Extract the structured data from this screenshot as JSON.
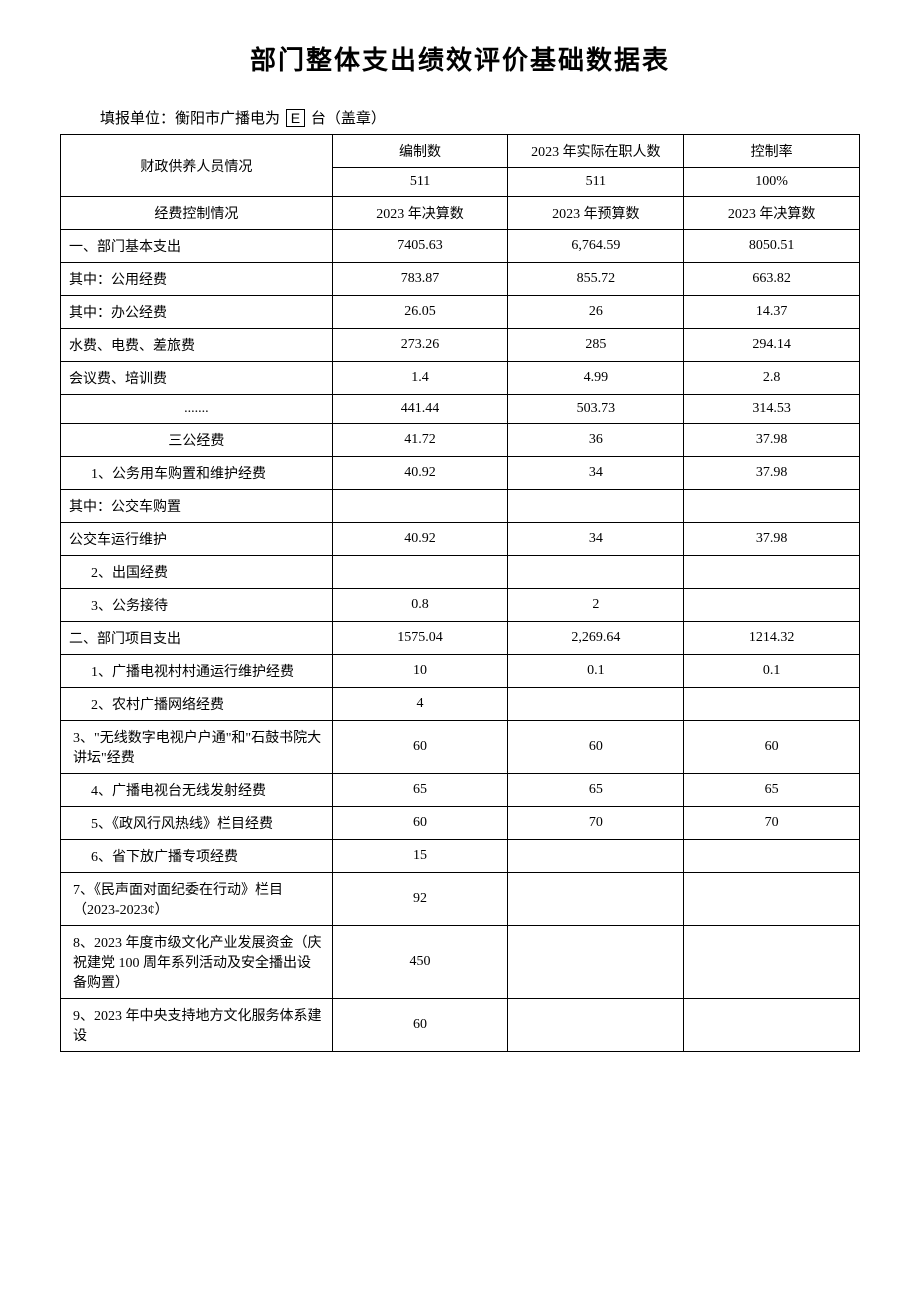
{
  "title": "部门整体支出绩效评价基础数据表",
  "subtitle_prefix": "填报单位：衡阳市广播电为",
  "subtitle_mid": "E",
  "subtitle_suffix": "台（盖章）",
  "header_row1": {
    "label": "财政供养人员情况",
    "col1": "编制数",
    "col2": "2023 年实际在职人数",
    "col3": "控制率"
  },
  "header_row2": {
    "col1": "511",
    "col2": "511",
    "col3": "100%"
  },
  "header_row3": {
    "label": "经费控制情况",
    "col1": "2023 年决算数",
    "col2": "2023 年预算数",
    "col3": "2023 年决算数"
  },
  "rows": [
    {
      "label": "一、部门基本支出",
      "align": "left",
      "c1": "7405.63",
      "c2": "6,764.59",
      "c3": "8050.51"
    },
    {
      "label": "其中：公用经费",
      "align": "left",
      "c1": "783.87",
      "c2": "855.72",
      "c3": "663.82"
    },
    {
      "label": "其中：办公经费",
      "align": "left",
      "c1": "26.05",
      "c2": "26",
      "c3": "14.37"
    },
    {
      "label": "水费、电费、差旅费",
      "align": "left",
      "c1": "273.26",
      "c2": "285",
      "c3": "294.14"
    },
    {
      "label": "会议费、培训费",
      "align": "left",
      "c1": "1.4",
      "c2": "4.99",
      "c3": "2.8"
    },
    {
      "label": ".......",
      "align": "center",
      "c1": "441.44",
      "c2": "503.73",
      "c3": "314.53"
    },
    {
      "label": "三公经费",
      "align": "center",
      "c1": "41.72",
      "c2": "36",
      "c3": "37.98"
    },
    {
      "label": "1、公务用车购置和维护经费",
      "align": "indent1",
      "c1": "40.92",
      "c2": "34",
      "c3": "37.98"
    },
    {
      "label": "其中：公交车购置",
      "align": "left",
      "c1": "",
      "c2": "",
      "c3": ""
    },
    {
      "label": "公交车运行维护",
      "align": "left",
      "c1": "40.92",
      "c2": "34",
      "c3": "37.98"
    },
    {
      "label": "2、出国经费",
      "align": "indent1",
      "c1": "",
      "c2": "",
      "c3": ""
    },
    {
      "label": "3、公务接待",
      "align": "indent1",
      "c1": "0.8",
      "c2": "2",
      "c3": ""
    },
    {
      "label": "二、部门项目支出",
      "align": "left",
      "c1": "1575.04",
      "c2": "2,269.64",
      "c3": "1214.32"
    },
    {
      "label": "1、广播电视村村通运行维护经费",
      "align": "indent1",
      "c1": "10",
      "c2": "0.1",
      "c3": "0.1"
    },
    {
      "label": "2、农村广播网络经费",
      "align": "indent1",
      "c1": "4",
      "c2": "",
      "c3": ""
    },
    {
      "label": "3、\"无线数字电视户户通\"和\"石鼓书院大讲坛\"经费",
      "align": "indent2",
      "c1": "60",
      "c2": "60",
      "c3": "60"
    },
    {
      "label": "4、广播电视台无线发射经费",
      "align": "indent1",
      "c1": "65",
      "c2": "65",
      "c3": "65"
    },
    {
      "label": "5、《政风行风热线》栏目经费",
      "align": "indent1",
      "c1": "60",
      "c2": "70",
      "c3": "70"
    },
    {
      "label": "6、省下放广播专项经费",
      "align": "indent1",
      "c1": "15",
      "c2": "",
      "c3": ""
    },
    {
      "label": "7、《民声面对面纪委在行动》栏目（2023-2023¢）",
      "align": "indent2",
      "c1": "92",
      "c2": "",
      "c3": ""
    },
    {
      "label": "8、2023 年度市级文化产业发展资金（庆祝建党 100 周年系列活动及安全播出设备购置）",
      "align": "indent2",
      "c1": "450",
      "c2": "",
      "c3": ""
    },
    {
      "label": "9、2023 年中央支持地方文化服务体系建设",
      "align": "indent2",
      "c1": "60",
      "c2": "",
      "c3": ""
    }
  ],
  "style": {
    "background_color": "#ffffff",
    "text_color": "#000000",
    "border_color": "#000000",
    "title_fontsize": 26,
    "body_fontsize": 14,
    "col_widths": [
      "34%",
      "22%",
      "22%",
      "22%"
    ]
  }
}
